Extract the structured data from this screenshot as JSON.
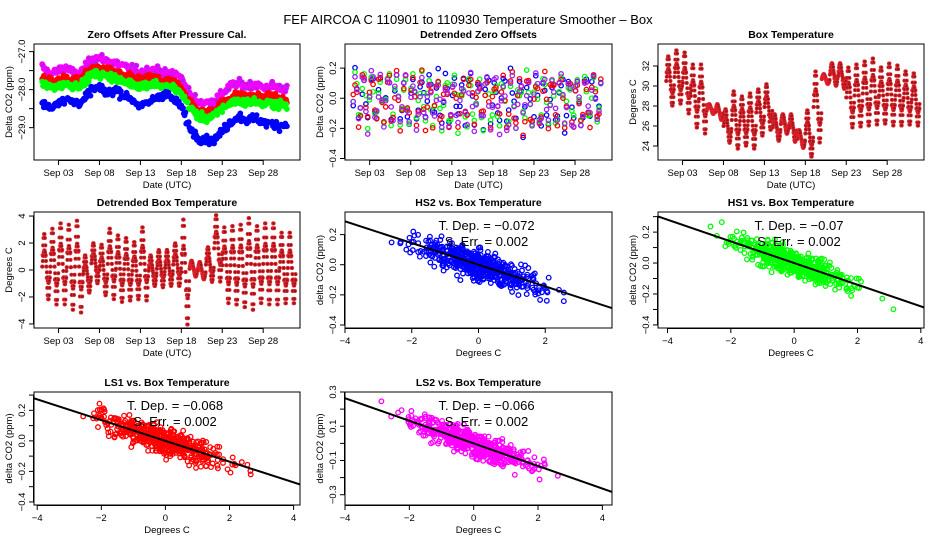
{
  "figure": {
    "suptitle": "FEF   AIRCOA C   110901 to 110930   Temperature Smoother – Box"
  },
  "chart_data": [
    {
      "id": "zero-offsets",
      "type": "scatter",
      "title": "Zero Offsets After Pressure Cal.",
      "xlabel": "Date (UTC)",
      "ylabel": "Delta CO2 (ppm)",
      "x_ticks": [
        "Sep 03",
        "Sep 08",
        "Sep 13",
        "Sep 18",
        "Sep 23",
        "Sep 28"
      ],
      "x_tick_days": [
        3,
        8,
        13,
        18,
        23,
        28
      ],
      "xlim": [
        0,
        32.5
      ],
      "y_ticks": [
        "−27.0",
        "−28.0",
        "−29.0"
      ],
      "y_tick_values": [
        -27.0,
        -27.5,
        -28.0,
        -28.5,
        -29.0
      ],
      "y_labeled": [
        -27.0,
        -28.0,
        -29.0
      ],
      "ylim": [
        -29.85,
        -26.8
      ],
      "series": [
        {
          "name": "LS2",
          "color": "#a020f0",
          "edge": "#ff00ff",
          "days": [
            1,
            2,
            3,
            4,
            5,
            6,
            7,
            8,
            9,
            10,
            11,
            12,
            13,
            14,
            15,
            16,
            17,
            18,
            19,
            20,
            21,
            22,
            23,
            24,
            25,
            26,
            27,
            28,
            29,
            30,
            31
          ],
          "values": [
            -27.4,
            -27.6,
            -27.5,
            -27.4,
            -27.6,
            -27.5,
            -27.2,
            -27.15,
            -27.25,
            -27.3,
            -27.4,
            -27.45,
            -27.55,
            -27.5,
            -27.45,
            -27.6,
            -27.55,
            -27.7,
            -28.1,
            -28.3,
            -28.35,
            -28.3,
            -28.1,
            -27.9,
            -27.85,
            -27.9,
            -27.85,
            -27.95,
            -27.9,
            -27.95,
            -28.0
          ]
        },
        {
          "name": "LS1",
          "color": "#ff0000",
          "edge": "#ff0000",
          "days": [
            1,
            2,
            3,
            4,
            5,
            6,
            7,
            8,
            9,
            10,
            11,
            12,
            13,
            14,
            15,
            16,
            17,
            18,
            19,
            20,
            21,
            22,
            23,
            24,
            25,
            26,
            27,
            28,
            29,
            30,
            31
          ],
          "values": [
            -27.7,
            -27.8,
            -27.75,
            -27.7,
            -27.75,
            -27.7,
            -27.45,
            -27.45,
            -27.5,
            -27.55,
            -27.65,
            -27.7,
            -27.75,
            -27.7,
            -27.7,
            -27.8,
            -27.8,
            -27.95,
            -28.3,
            -28.55,
            -28.6,
            -28.55,
            -28.35,
            -28.2,
            -28.15,
            -28.2,
            -28.15,
            -28.25,
            -28.2,
            -28.25,
            -28.3
          ]
        },
        {
          "name": "HS1",
          "color": "#00ff00",
          "edge": "#00ff00",
          "days": [
            1,
            2,
            3,
            4,
            5,
            6,
            7,
            8,
            9,
            10,
            11,
            12,
            13,
            14,
            15,
            16,
            17,
            18,
            19,
            20,
            21,
            22,
            23,
            24,
            25,
            26,
            27,
            28,
            29,
            30,
            31
          ],
          "values": [
            -27.85,
            -27.95,
            -27.9,
            -27.85,
            -27.9,
            -27.85,
            -27.6,
            -27.6,
            -27.65,
            -27.7,
            -27.8,
            -27.85,
            -27.9,
            -27.85,
            -27.85,
            -27.95,
            -27.95,
            -28.1,
            -28.45,
            -28.7,
            -28.75,
            -28.7,
            -28.5,
            -28.35,
            -28.3,
            -28.35,
            -28.3,
            -28.4,
            -28.35,
            -28.4,
            -28.45
          ]
        },
        {
          "name": "HS2",
          "color": "#0000ff",
          "edge": "#0000ff",
          "days": [
            1,
            2,
            3,
            4,
            5,
            6,
            7,
            8,
            9,
            10,
            11,
            12,
            13,
            14,
            15,
            16,
            17,
            18,
            19,
            20,
            21,
            22,
            23,
            24,
            25,
            26,
            27,
            28,
            29,
            30,
            31
          ],
          "values": [
            -28.35,
            -28.5,
            -28.3,
            -28.25,
            -28.35,
            -28.3,
            -28.0,
            -27.95,
            -28.1,
            -28.0,
            -28.15,
            -28.25,
            -28.45,
            -28.35,
            -28.2,
            -28.1,
            -28.25,
            -28.45,
            -29.0,
            -29.25,
            -29.3,
            -29.35,
            -29.1,
            -28.85,
            -28.7,
            -28.8,
            -28.75,
            -28.85,
            -28.9,
            -28.95,
            -28.9
          ]
        }
      ]
    },
    {
      "id": "detrended-zero-offsets",
      "type": "scatter",
      "title": "Detrended Zero Offsets",
      "xlabel": "Date (UTC)",
      "ylabel": "Delta CO2 (ppm)",
      "x_ticks": [
        "Sep 03",
        "Sep 08",
        "Sep 13",
        "Sep 18",
        "Sep 23",
        "Sep 28"
      ],
      "x_tick_days": [
        3,
        8,
        13,
        18,
        23,
        28
      ],
      "xlim": [
        0,
        32.5
      ],
      "y_ticks": [
        "−0.4",
        "−0.2",
        "0.0",
        "0.2"
      ],
      "y_tick_values": [
        -0.4,
        -0.2,
        0.0,
        0.2
      ],
      "ylim": [
        -0.41,
        0.36
      ],
      "series": [
        {
          "name": "HS2",
          "color": "#0000ff"
        },
        {
          "name": "HS1",
          "color": "#00ff00"
        },
        {
          "name": "LS1",
          "color": "#ff0000"
        },
        {
          "name": "LS2",
          "color": "#a020f0"
        }
      ],
      "spread": [
        -0.38,
        0.33
      ]
    },
    {
      "id": "box-temperature",
      "type": "scatter",
      "title": "Box Temperature",
      "xlabel": "Date (UTC)",
      "ylabel": "Degrees C",
      "x_ticks": [
        "Sep 03",
        "Sep 08",
        "Sep 13",
        "Sep 18",
        "Sep 23",
        "Sep 28"
      ],
      "x_tick_days": [
        3,
        8,
        13,
        18,
        23,
        28
      ],
      "xlim": [
        0,
        32.5
      ],
      "y_ticks": [
        "24",
        "26",
        "28",
        "30",
        "32"
      ],
      "y_tick_values": [
        24,
        26,
        28,
        30,
        32
      ],
      "ylim": [
        22.6,
        34.2
      ],
      "color": "#b22222",
      "daily_range": {
        "days": [
          1,
          2,
          3,
          4,
          5,
          6,
          7,
          8,
          9,
          10,
          11,
          12,
          13,
          14,
          15,
          16,
          17,
          18,
          19,
          20,
          21,
          22,
          23,
          24,
          25,
          26,
          27,
          28,
          29,
          30,
          31
        ],
        "min": [
          28.0,
          28.2,
          27.2,
          25.8,
          25.2,
          27.2,
          26.6,
          24.3,
          23.7,
          24.0,
          23.7,
          25.0,
          25.6,
          24.5,
          25.2,
          24.4,
          23.8,
          22.9,
          24.3,
          30.2,
          30.0,
          29.7,
          25.8,
          25.9,
          26.0,
          26.1,
          26.2,
          26.0,
          26.0,
          26.1,
          26.0
        ],
        "max": [
          33.0,
          33.6,
          33.4,
          32.2,
          32.2,
          28.2,
          28.2,
          27.7,
          29.5,
          29.0,
          29.3,
          29.7,
          30.2,
          27.2,
          27.2,
          27.2,
          25.6,
          27.6,
          31.5,
          31.2,
          32.3,
          32.3,
          31.9,
          32.2,
          32.5,
          32.8,
          31.9,
          32.3,
          32.1,
          31.5,
          31.3
        ]
      }
    },
    {
      "id": "detrended-box-temperature",
      "type": "scatter",
      "title": "Detrended Box Temperature",
      "xlabel": "Date (UTC)",
      "ylabel": "Degrees C",
      "x_ticks": [
        "Sep 03",
        "Sep 08",
        "Sep 13",
        "Sep 18",
        "Sep 23",
        "Sep 28"
      ],
      "x_tick_days": [
        3,
        8,
        13,
        18,
        23,
        28
      ],
      "xlim": [
        0,
        32.5
      ],
      "y_ticks": [
        "−4",
        "−2",
        "0",
        "2",
        "4"
      ],
      "y_tick_values": [
        -4,
        -2,
        0,
        2,
        4
      ],
      "ylim": [
        -4.3,
        4.3
      ],
      "color": "#b22222",
      "daily_range": {
        "days": [
          1,
          2,
          3,
          4,
          5,
          6,
          7,
          8,
          9,
          10,
          11,
          12,
          13,
          14,
          15,
          16,
          17,
          18,
          19,
          20,
          21,
          22,
          23,
          24,
          25,
          26,
          27,
          28,
          29,
          30,
          31
        ],
        "min": [
          -2.2,
          -2.6,
          -2.6,
          -3.0,
          -3.2,
          -1.7,
          -1.0,
          -1.9,
          -2.2,
          -2.4,
          -2.3,
          -2.2,
          -2.3,
          -1.2,
          -1.3,
          -1.2,
          -1.2,
          -4.1,
          -0.5,
          -0.7,
          -0.9,
          -0.9,
          -2.5,
          -2.6,
          -2.8,
          -3.0,
          -2.5,
          -2.6,
          -2.6,
          -2.5,
          -2.5
        ],
        "max": [
          2.7,
          3.1,
          3.5,
          3.4,
          3.7,
          1.1,
          2.0,
          1.9,
          3.1,
          2.6,
          2.4,
          2.1,
          3.2,
          1.1,
          1.5,
          1.5,
          2.0,
          3.8,
          0.7,
          0.6,
          1.7,
          4.1,
          3.2,
          3.3,
          3.4,
          3.9,
          3.3,
          3.5,
          3.5,
          2.8,
          2.8
        ]
      }
    },
    {
      "id": "hs2-vs-box",
      "type": "scatter",
      "title": "HS2 vs. Box Temperature",
      "xlabel": "Degrees C",
      "ylabel": "delta CO2 (ppm)",
      "x_ticks": [
        "−4",
        "−2",
        "0",
        "2"
      ],
      "x_tick_values": [
        -4,
        -2,
        0,
        2
      ],
      "xlim": [
        -4.0,
        4.0
      ],
      "y_ticks": [
        "−0.4",
        "−0.2",
        "0.0",
        "0.2"
      ],
      "y_tick_values": [
        -0.4,
        -0.2,
        0.0,
        0.2
      ],
      "ylim": [
        -0.42,
        0.35
      ],
      "color": "#0000ff",
      "fit": {
        "slope": -0.072,
        "intercept": 0.0
      },
      "annotation": [
        "T. Dep. =  −0.072",
        "S. Err. =  0.002"
      ],
      "x_range": [
        -3.8,
        3.7
      ],
      "noise": 0.075
    },
    {
      "id": "hs1-vs-box",
      "type": "scatter",
      "title": "HS1 vs. Box Temperature",
      "xlabel": "Degrees C",
      "ylabel": "delta CO2 (ppm)",
      "x_ticks": [
        "−4",
        "−2",
        "0",
        "2",
        "4"
      ],
      "x_tick_values": [
        -4,
        -2,
        0,
        2,
        4
      ],
      "xlim": [
        -4.3,
        4.1
      ],
      "y_ticks": [
        "−0.4",
        "−0.2",
        "0.0",
        "0.2"
      ],
      "y_tick_values": [
        -0.4,
        -0.3,
        -0.2,
        -0.1,
        0.0,
        0.1,
        0.2,
        0.3
      ],
      "y_labeled": [
        -0.4,
        -0.2,
        0.0,
        0.2
      ],
      "ylim": [
        -0.42,
        0.33
      ],
      "color": "#00ff00",
      "fit": {
        "slope": -0.07,
        "intercept": 0.0
      },
      "annotation": [
        "T. Dep. =  −0.07",
        "S. Err. =  0.002"
      ],
      "x_range": [
        -4.1,
        3.8
      ],
      "noise": 0.07
    },
    {
      "id": "ls1-vs-box",
      "type": "scatter",
      "title": "LS1 vs. Box Temperature",
      "xlabel": "Degrees C",
      "ylabel": "delta CO2 (ppm)",
      "x_ticks": [
        "−4",
        "−2",
        "0",
        "2",
        "4"
      ],
      "x_tick_values": [
        -4,
        -2,
        0,
        2,
        4
      ],
      "xlim": [
        -4.1,
        4.2
      ],
      "y_ticks": [
        "−0.4",
        "−0.2",
        "0.0",
        "0.2"
      ],
      "y_tick_values": [
        -0.4,
        -0.3,
        -0.2,
        -0.1,
        0.0,
        0.1,
        0.2,
        0.3
      ],
      "y_labeled": [
        -0.4,
        -0.2,
        0.0,
        0.2
      ],
      "ylim": [
        -0.42,
        0.32
      ],
      "color": "#ff0000",
      "fit": {
        "slope": -0.068,
        "intercept": 0.0
      },
      "annotation": [
        "T. Dep. =  −0.068",
        "S. Err. =  0.002"
      ],
      "x_range": [
        -3.7,
        4.0
      ],
      "noise": 0.07
    },
    {
      "id": "ls2-vs-box",
      "type": "scatter",
      "title": "LS2 vs. Box Temperature",
      "xlabel": "Degrees C",
      "ylabel": "delta CO2 (ppm)",
      "x_ticks": [
        "−4",
        "−2",
        "0",
        "2",
        "4"
      ],
      "x_tick_values": [
        -4,
        -2,
        0,
        2,
        4
      ],
      "xlim": [
        -4.0,
        4.3
      ],
      "y_ticks": [
        "−0.3",
        "−0.1",
        "0.1",
        "0.3"
      ],
      "y_tick_values": [
        -0.3,
        -0.2,
        -0.1,
        0.0,
        0.1,
        0.2,
        0.3
      ],
      "y_labeled": [
        -0.3,
        -0.1,
        0.1,
        0.3
      ],
      "ylim": [
        -0.36,
        0.3
      ],
      "color": "#a020f0",
      "edge": "#ff00ff",
      "fit": {
        "slope": -0.066,
        "intercept": 0.0
      },
      "annotation": [
        "T. Dep. =  −0.066",
        "S. Err. =  0.002"
      ],
      "x_range": [
        -3.8,
        4.0
      ],
      "noise": 0.06
    }
  ]
}
